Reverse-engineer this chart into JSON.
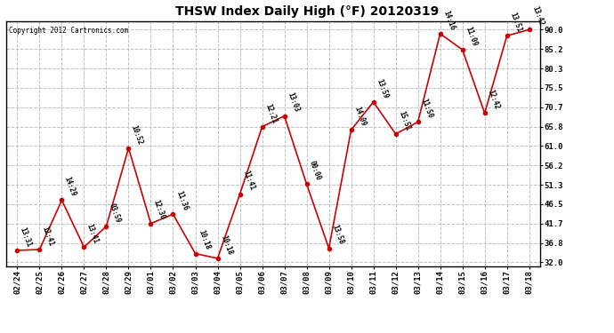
{
  "title": "THSW Index Daily High (°F) 20120319",
  "copyright": "Copyright 2012 Cartronics.com",
  "dates": [
    "02/24",
    "02/25",
    "02/26",
    "02/27",
    "02/28",
    "02/29",
    "03/01",
    "03/02",
    "03/03",
    "03/04",
    "03/05",
    "03/06",
    "03/07",
    "03/08",
    "03/09",
    "03/10",
    "03/11",
    "03/12",
    "03/13",
    "03/14",
    "03/15",
    "03/16",
    "03/17",
    "03/18"
  ],
  "values": [
    35.0,
    35.2,
    47.5,
    35.8,
    41.0,
    60.5,
    41.7,
    44.0,
    34.2,
    33.0,
    49.0,
    65.8,
    68.5,
    51.5,
    35.5,
    65.0,
    72.0,
    64.0,
    67.0,
    89.0,
    85.0,
    69.2,
    88.5,
    90.0
  ],
  "labels": [
    "13:31",
    "12:41",
    "14:29",
    "13:41",
    "03:59",
    "10:52",
    "12:30",
    "11:36",
    "10:18",
    "10:18",
    "11:41",
    "12:21",
    "13:03",
    "00:00",
    "13:58",
    "14:09",
    "13:59",
    "15:51",
    "11:50",
    "14:16",
    "11:09",
    "12:42",
    "13:51",
    "13:42"
  ],
  "yticks": [
    32.0,
    36.8,
    41.7,
    46.5,
    51.3,
    56.2,
    61.0,
    65.8,
    70.7,
    75.5,
    80.3,
    85.2,
    90.0
  ],
  "ylim": [
    31.0,
    92.0
  ],
  "line_color": "#cc0000",
  "marker_color": "#cc0000",
  "grid_color": "#c0c0c0",
  "bg_color": "#ffffff",
  "title_fontsize": 10,
  "label_fontsize": 5.5,
  "axis_fontsize": 6.5,
  "copyright_fontsize": 5.5
}
